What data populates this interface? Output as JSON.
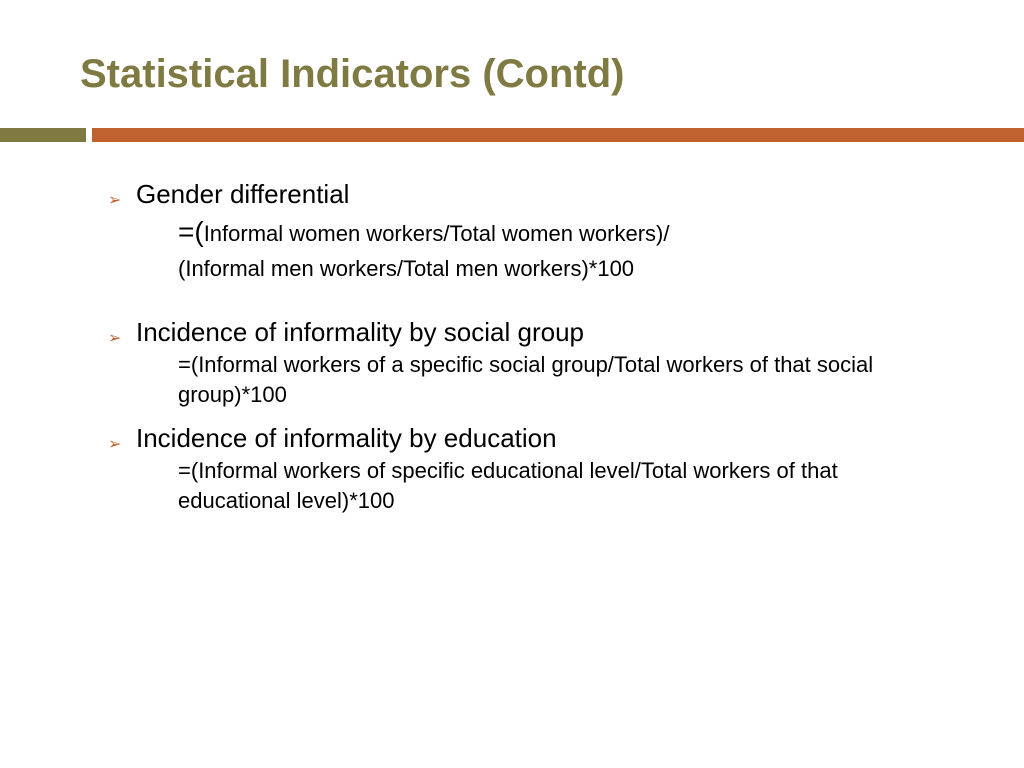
{
  "title": "Statistical Indicators (Contd)",
  "colors": {
    "title": "#7e7a41",
    "bar_green": "#7e7a41",
    "bar_orange": "#c0622f",
    "bullet": "#c0622f",
    "text": "#000000",
    "background": "#ffffff"
  },
  "items": [
    {
      "heading": "Gender differential",
      "line1_prefix": "=(",
      "line1_rest": "Informal women workers/Total women workers)/",
      "line2": "(Informal men workers/Total men workers)*100"
    },
    {
      "heading": "Incidence of informality by social group",
      "line1_prefix": "=(",
      "line1_rest": "Informal workers of a specific social group/Total workers of that social group)*100"
    },
    {
      "heading": "Incidence of informality by education",
      "line1_prefix": "=(",
      "line1_rest": "Informal workers of specific educational level/Total workers of that  educational level)*100"
    }
  ]
}
